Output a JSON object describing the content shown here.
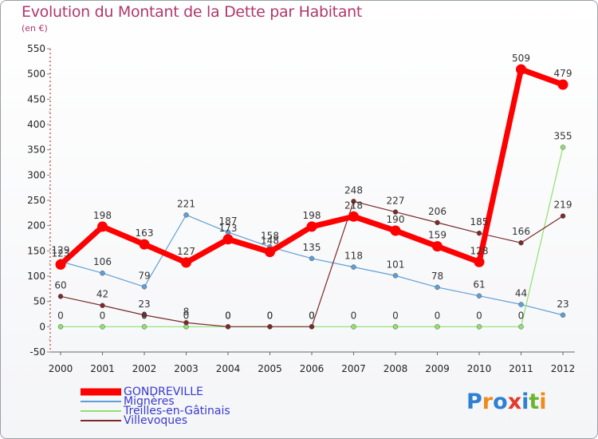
{
  "header": {
    "title": "Evolution du Montant de la Dette par Habitant",
    "subtitle": "(en €)"
  },
  "logo": {
    "text": "Proxiti",
    "letters": [
      {
        "ch": "P",
        "color": "#2f7fd3"
      },
      {
        "ch": "r",
        "color": "#f08a1c"
      },
      {
        "ch": "o",
        "color": "#2f7fd3"
      },
      {
        "ch": "x",
        "color": "#e23a2c"
      },
      {
        "ch": "i",
        "color": "#2f7fd3"
      },
      {
        "ch": "t",
        "color": "#6bb630"
      },
      {
        "ch": "i",
        "color": "#f08a1c"
      }
    ]
  },
  "chart_data": {
    "type": "line",
    "title": "Evolution du Montant de la Dette par Habitant",
    "ylabel": "(en €)",
    "x": [
      "2000",
      "2001",
      "2002",
      "2003",
      "2004",
      "2005",
      "2006",
      "2007",
      "2008",
      "2009",
      "2010",
      "2011",
      "2012"
    ],
    "ylim": [
      -50,
      550
    ],
    "yticks": [
      -50,
      0,
      50,
      100,
      150,
      200,
      250,
      300,
      350,
      400,
      450,
      500,
      550
    ],
    "grid": false,
    "legend_position": "bottom-left",
    "series": [
      {
        "name": "GONDREVILLE",
        "color": "#ff0000",
        "values": [
          123,
          198,
          163,
          127,
          173,
          148,
          198,
          218,
          190,
          159,
          128,
          509,
          479
        ],
        "labels": [
          "123",
          "198",
          "163",
          "127",
          "173",
          "148",
          "198",
          "218",
          "190",
          "159",
          "128",
          "509",
          "479"
        ]
      },
      {
        "name": "Mignères",
        "color": "#5f9fd6",
        "values": [
          129,
          106,
          79,
          221,
          187,
          158,
          135,
          118,
          101,
          78,
          61,
          44,
          23
        ],
        "labels": [
          "129",
          "106",
          "79",
          "221",
          "187",
          "158",
          "135",
          "118",
          "101",
          "78",
          "61",
          "44",
          "23"
        ]
      },
      {
        "name": "Treilles-en-Gâtinais",
        "color": "#90e070",
        "values": [
          0,
          0,
          0,
          0,
          0,
          0,
          0,
          0,
          0,
          0,
          0,
          0,
          355
        ],
        "labels": [
          "0",
          "0",
          "0",
          "0",
          "0",
          "0",
          "0",
          "0",
          "0",
          "0",
          "0",
          "0",
          "355"
        ]
      },
      {
        "name": "Villevoques",
        "color": "#7a2a2a",
        "values": [
          60,
          42,
          23,
          8,
          0,
          0,
          0,
          248,
          227,
          206,
          185,
          166,
          219
        ],
        "labels": [
          "60",
          "42",
          "23",
          "8",
          "0",
          "0",
          "0",
          "248",
          "227",
          "206",
          "185",
          "166",
          "219"
        ]
      }
    ]
  }
}
